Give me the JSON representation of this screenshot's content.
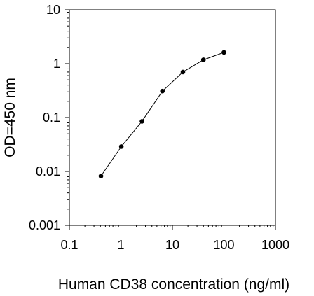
{
  "chart_data": {
    "type": "line",
    "xlabel": "Human CD38 concentration (ng/ml)",
    "ylabel": "OD=450 nm",
    "x_scale": "log",
    "y_scale": "log",
    "xlim": [
      0.1,
      1000
    ],
    "ylim": [
      0.001,
      10
    ],
    "x_ticks": [
      "0.1",
      "1",
      "10",
      "100",
      "1000"
    ],
    "y_ticks": [
      "10",
      "1",
      "0.1",
      "0.01",
      "0.001"
    ],
    "grid": false,
    "legend": "none",
    "series": [
      {
        "x": [
          0.41,
          1.02,
          2.56,
          6.4,
          16,
          40,
          100
        ],
        "y": [
          0.0082,
          0.029,
          0.085,
          0.31,
          0.7,
          1.18,
          1.62
        ],
        "color": "#000000"
      }
    ]
  }
}
